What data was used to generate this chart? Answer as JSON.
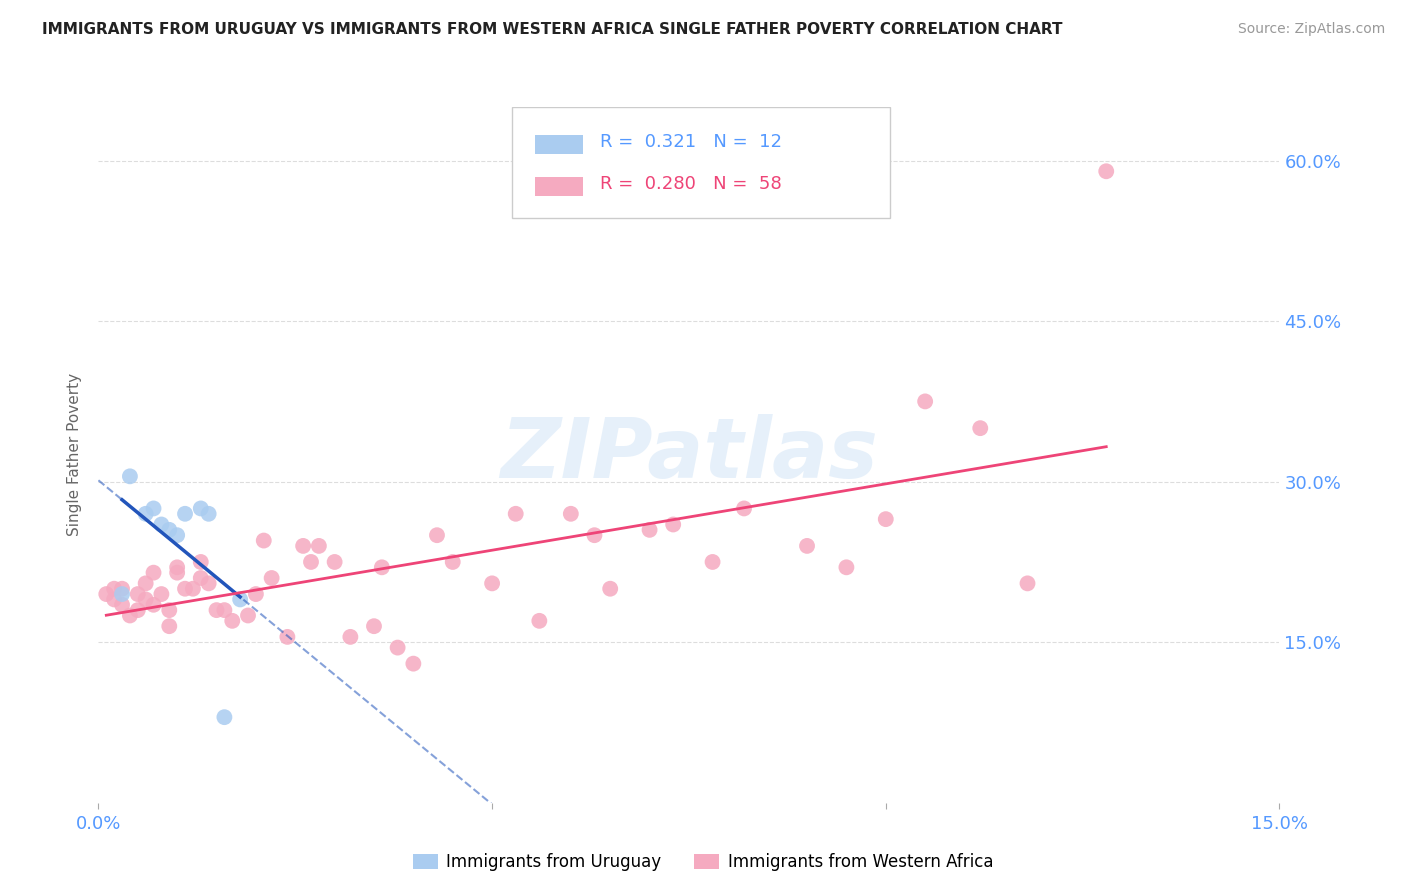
{
  "title": "IMMIGRANTS FROM URUGUAY VS IMMIGRANTS FROM WESTERN AFRICA SINGLE FATHER POVERTY CORRELATION CHART",
  "source": "Source: ZipAtlas.com",
  "tick_color": "#5599ff",
  "ylabel": "Single Father Poverty",
  "xlim": [
    0.0,
    0.15
  ],
  "ylim": [
    0.0,
    0.65
  ],
  "ytick_values": [
    0.15,
    0.3,
    0.45,
    0.6
  ],
  "xtick_values": [
    0.0,
    0.05,
    0.1,
    0.15
  ],
  "xtick_labels": [
    "0.0%",
    "",
    "",
    "15.0%"
  ],
  "right_ytick_labels": [
    "15.0%",
    "30.0%",
    "45.0%",
    "60.0%"
  ],
  "grid_color": "#dddddd",
  "background_color": "#ffffff",
  "uruguay_color": "#aaccf0",
  "western_africa_color": "#f5aac0",
  "uruguay_line_color": "#2255bb",
  "western_africa_line_color": "#ee4477",
  "uruguay_R": 0.321,
  "uruguay_N": 12,
  "western_africa_R": 0.28,
  "western_africa_N": 58,
  "uruguay_points_x": [
    0.003,
    0.004,
    0.006,
    0.007,
    0.008,
    0.009,
    0.01,
    0.011,
    0.013,
    0.014,
    0.016,
    0.018
  ],
  "uruguay_points_y": [
    0.195,
    0.305,
    0.27,
    0.275,
    0.26,
    0.255,
    0.25,
    0.27,
    0.275,
    0.27,
    0.08,
    0.19
  ],
  "western_africa_points_x": [
    0.001,
    0.002,
    0.002,
    0.003,
    0.003,
    0.004,
    0.005,
    0.005,
    0.006,
    0.006,
    0.007,
    0.007,
    0.008,
    0.009,
    0.009,
    0.01,
    0.01,
    0.011,
    0.012,
    0.013,
    0.013,
    0.014,
    0.015,
    0.016,
    0.017,
    0.019,
    0.02,
    0.021,
    0.022,
    0.024,
    0.026,
    0.027,
    0.028,
    0.03,
    0.032,
    0.035,
    0.036,
    0.038,
    0.04,
    0.043,
    0.045,
    0.05,
    0.053,
    0.056,
    0.06,
    0.063,
    0.065,
    0.07,
    0.073,
    0.078,
    0.082,
    0.09,
    0.095,
    0.1,
    0.105,
    0.112,
    0.118,
    0.128
  ],
  "western_africa_points_y": [
    0.195,
    0.19,
    0.2,
    0.185,
    0.2,
    0.175,
    0.195,
    0.18,
    0.19,
    0.205,
    0.215,
    0.185,
    0.195,
    0.165,
    0.18,
    0.22,
    0.215,
    0.2,
    0.2,
    0.225,
    0.21,
    0.205,
    0.18,
    0.18,
    0.17,
    0.175,
    0.195,
    0.245,
    0.21,
    0.155,
    0.24,
    0.225,
    0.24,
    0.225,
    0.155,
    0.165,
    0.22,
    0.145,
    0.13,
    0.25,
    0.225,
    0.205,
    0.27,
    0.17,
    0.27,
    0.25,
    0.2,
    0.255,
    0.26,
    0.225,
    0.275,
    0.24,
    0.22,
    0.265,
    0.375,
    0.35,
    0.205,
    0.59
  ],
  "legend_uruguay_label": "Immigrants from Uruguay",
  "legend_western_africa_label": "Immigrants from Western Africa",
  "watermark": "ZIPatlas"
}
